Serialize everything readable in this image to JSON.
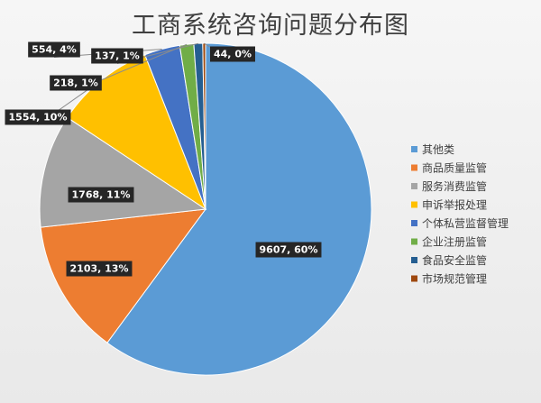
{
  "chart_data": {
    "type": "pie",
    "title": "工商系统咨询问题分布图",
    "series": [
      {
        "name": "其他类",
        "value": 9607,
        "label": "9607, 60%",
        "color": "#5b9bd5"
      },
      {
        "name": "商品质量监管",
        "value": 2103,
        "label": "2103, 13%",
        "color": "#ed7d31"
      },
      {
        "name": "服务消费监管",
        "value": 1768,
        "label": "1768, 11%",
        "color": "#a5a5a5"
      },
      {
        "name": "申诉举报处理",
        "value": 1554,
        "label": "1554, 10%",
        "color": "#ffc000"
      },
      {
        "name": "个体私营监督管理",
        "value": 554,
        "label": "554, 4%",
        "color": "#4472c4"
      },
      {
        "name": "企业注册监管",
        "value": 218,
        "label": "218, 1%",
        "color": "#70ad47"
      },
      {
        "name": "食品安全监管",
        "value": 137,
        "label": "137, 1%",
        "color": "#255e91"
      },
      {
        "name": "市场规范管理",
        "value": 44,
        "label": "44, 0%",
        "color": "#9e480e"
      }
    ],
    "legend_position": "right"
  }
}
